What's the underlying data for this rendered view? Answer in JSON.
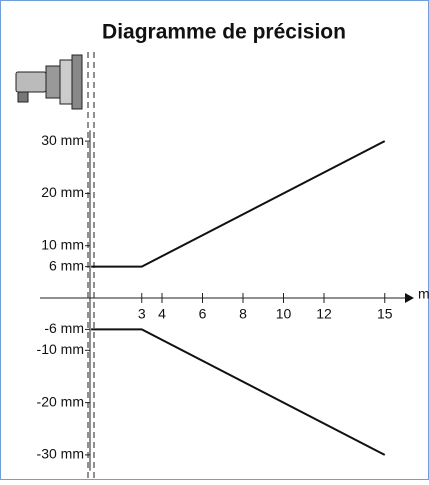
{
  "chart_data": {
    "type": "line",
    "title": "Diagramme de précision",
    "x_label": "m",
    "series": [
      {
        "color": "#111111",
        "x": [
          0.5,
          3,
          15
        ],
        "values": [
          6,
          6,
          30
        ]
      },
      {
        "color": "#111111",
        "x": [
          0.5,
          3,
          15
        ],
        "values": [
          -6,
          -6,
          -30
        ]
      }
    ],
    "xlim": [
      -1,
      16
    ],
    "ylim": [
      -33,
      34
    ],
    "xticks": [
      3,
      4,
      6,
      8,
      10,
      12,
      15
    ],
    "yticks": [
      {
        "value": 30,
        "label": "30 mm"
      },
      {
        "value": 20,
        "label": "20 mm"
      },
      {
        "value": 10,
        "label": "10 mm"
      },
      {
        "value": 6,
        "label": "6 mm"
      },
      {
        "value": -6,
        "label": "-6 mm"
      },
      {
        "value": -10,
        "label": "-10 mm"
      },
      {
        "value": -20,
        "label": "-20 mm"
      },
      {
        "value": -30,
        "label": "-30 mm"
      }
    ]
  }
}
